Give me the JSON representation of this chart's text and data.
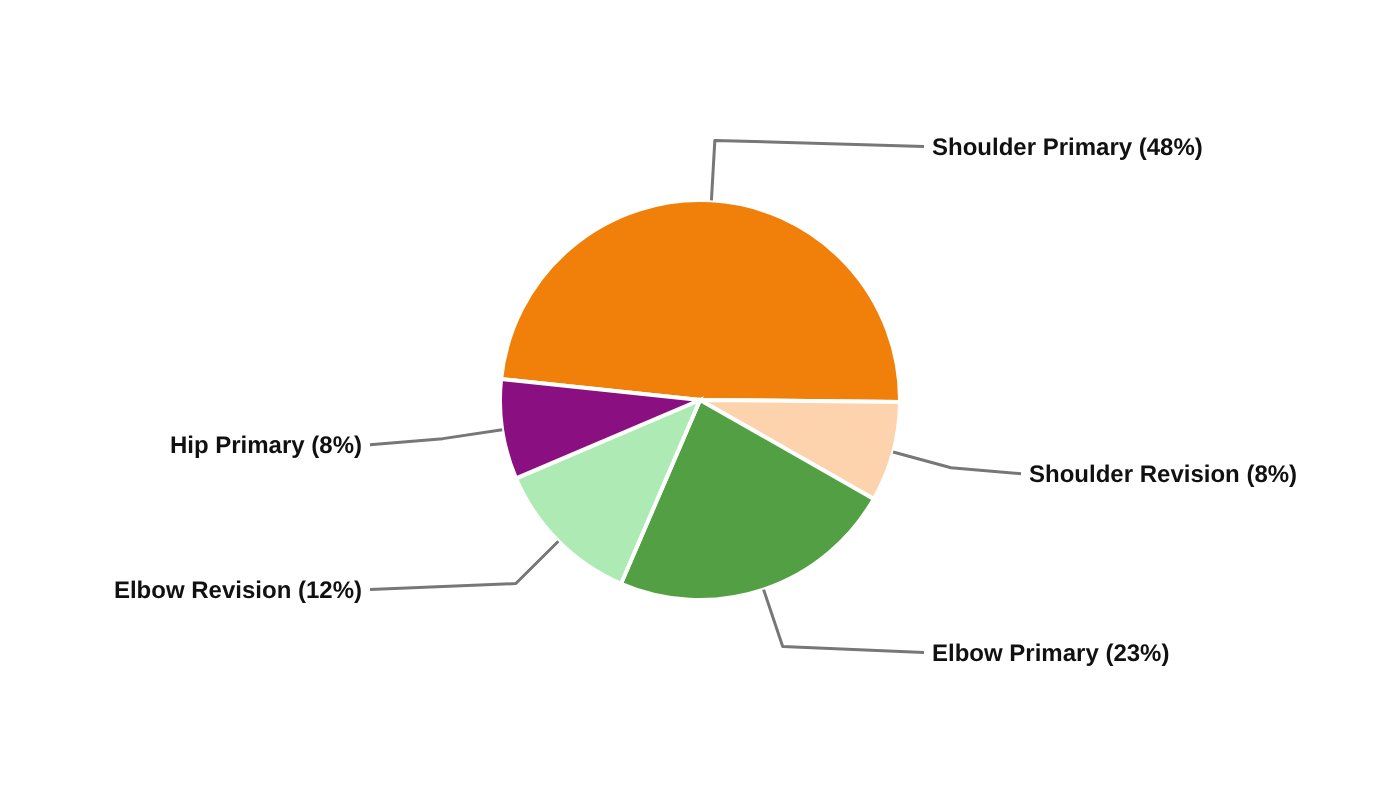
{
  "chart_data": {
    "type": "pie",
    "categories": [
      "Shoulder Primary",
      "Shoulder Revision",
      "Elbow Primary",
      "Elbow Revision",
      "Hip Primary"
    ],
    "values": [
      48,
      8,
      23,
      12,
      8
    ],
    "colors": [
      "#f0800a",
      "#fdd3ad",
      "#52a043",
      "#aeeab4",
      "#8a1082"
    ],
    "value_labels": [
      "(48%)",
      "(8%)",
      "(23%)",
      "(12%)",
      "(8%)"
    ]
  }
}
